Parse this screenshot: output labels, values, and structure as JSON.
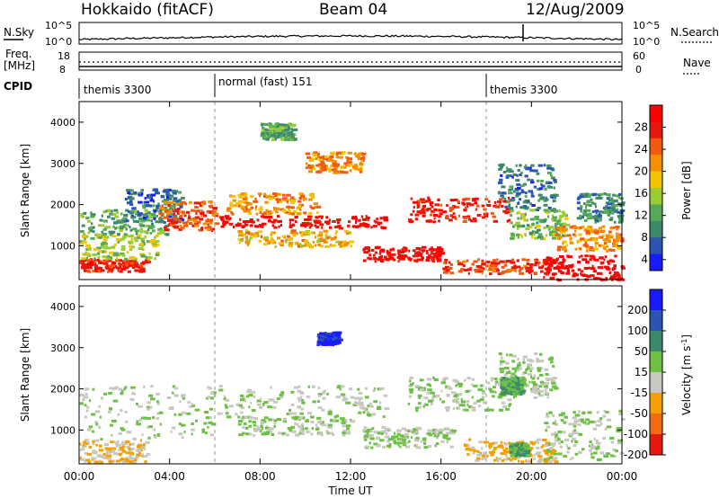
{
  "header": {
    "station": "Hokkaido (fitACF)",
    "beam": "Beam 04",
    "date": "12/Aug/2009"
  },
  "noise_panel": {
    "left_label": "N.Sky",
    "right_label": "N.Search",
    "left_ticks": [
      "10^5",
      "10^0"
    ],
    "right_ticks": [
      "10^5",
      "10^0"
    ]
  },
  "freq_panel": {
    "left_label_line1": "Freq.",
    "left_label_line2": "[MHz]",
    "right_label": "Nave",
    "left_ticks": [
      "18",
      "8"
    ],
    "right_ticks": [
      "60",
      "0"
    ]
  },
  "cpid_panel": {
    "label": "CPID",
    "modes": [
      {
        "text": "themis 3300",
        "start_hour": 0
      },
      {
        "text": "normal (fast) 151",
        "start_hour": 6
      },
      {
        "text": "themis 3300",
        "start_hour": 18
      }
    ]
  },
  "time_axis": {
    "label": "Time UT",
    "ticks": [
      "00:00",
      "04:00",
      "08:00",
      "12:00",
      "16:00",
      "20:00",
      "00:00"
    ]
  },
  "colors": {
    "power_scale": [
      "#1a1aff",
      "#2a55b0",
      "#3d8a6a",
      "#58a85a",
      "#9acd32",
      "#f5c400",
      "#f39000",
      "#f35a10",
      "#e8180c",
      "#ff0000"
    ],
    "velocity_scale": [
      "#1a1aff",
      "#2a55b0",
      "#3d8a6a",
      "#6cc043",
      "#c8c8c0",
      "#f5a000",
      "#f36a10",
      "#e8180c"
    ]
  },
  "chart_data": [
    {
      "type": "heatmap",
      "name": "power",
      "ylabel": "Slant Range [km]",
      "xlabel": "Time UT",
      "xlim": [
        0,
        24
      ],
      "ylim": [
        180,
        4500
      ],
      "yticks": [
        "1000",
        "2000",
        "3000",
        "4000"
      ],
      "colorbar": {
        "label": "Power [dB]",
        "ticks": [
          "28",
          "24",
          "20",
          "16",
          "12",
          "8",
          "4"
        ],
        "range": [
          0,
          30
        ]
      },
      "blobs": [
        {
          "t0": 0.0,
          "t1": 3.0,
          "r0": 400,
          "r1": 700,
          "v": 26
        },
        {
          "t0": 0.0,
          "t1": 3.5,
          "r0": 700,
          "r1": 1300,
          "v": 14
        },
        {
          "t0": 0.0,
          "t1": 4.0,
          "r0": 1300,
          "r1": 1900,
          "v": 10
        },
        {
          "t0": 2.0,
          "t1": 4.5,
          "r0": 1600,
          "r1": 2400,
          "v": 6
        },
        {
          "t0": 3.5,
          "t1": 6.0,
          "r0": 1400,
          "r1": 2100,
          "v": 23
        },
        {
          "t0": 6.0,
          "t1": 13.5,
          "r0": 1450,
          "r1": 1750,
          "v": 28
        },
        {
          "t0": 6.5,
          "t1": 10.5,
          "r0": 1800,
          "r1": 2300,
          "v": 20
        },
        {
          "t0": 7.0,
          "t1": 12.0,
          "r0": 1000,
          "r1": 1400,
          "v": 18
        },
        {
          "t0": 8.0,
          "t1": 9.5,
          "r0": 3600,
          "r1": 4000,
          "v": 10
        },
        {
          "t0": 10.0,
          "t1": 12.5,
          "r0": 2800,
          "r1": 3300,
          "v": 20
        },
        {
          "t0": 12.5,
          "t1": 16.0,
          "r0": 650,
          "r1": 1000,
          "v": 28
        },
        {
          "t0": 14.5,
          "t1": 19.0,
          "r0": 1600,
          "r1": 2200,
          "v": 26
        },
        {
          "t0": 16.0,
          "t1": 21.0,
          "r0": 350,
          "r1": 700,
          "v": 24
        },
        {
          "t0": 18.5,
          "t1": 21.0,
          "r0": 1900,
          "r1": 3000,
          "v": 6
        },
        {
          "t0": 19.0,
          "t1": 21.5,
          "r0": 1200,
          "r1": 1900,
          "v": 12
        },
        {
          "t0": 20.5,
          "t1": 24.0,
          "r0": 200,
          "r1": 800,
          "v": 29
        },
        {
          "t0": 21.0,
          "t1": 24.0,
          "r0": 900,
          "r1": 1500,
          "v": 20
        },
        {
          "t0": 22.0,
          "t1": 24.0,
          "r0": 1600,
          "r1": 2300,
          "v": 8
        }
      ]
    },
    {
      "type": "heatmap",
      "name": "velocity",
      "ylabel": "Slant Range [km]",
      "xlabel": "Time UT",
      "xlim": [
        0,
        24
      ],
      "ylim": [
        180,
        4500
      ],
      "yticks": [
        "1000",
        "2000",
        "3000",
        "4000"
      ],
      "colorbar": {
        "label": "Velocity [m s-1]",
        "ticks": [
          "200",
          "100",
          "50",
          "15",
          "-15",
          "-50",
          "-100",
          "-200"
        ],
        "range": [
          -250,
          250
        ]
      },
      "blobs": [
        {
          "t0": 0.0,
          "t1": 6.0,
          "r0": 800,
          "r1": 2100,
          "v": 0
        },
        {
          "t0": 0.0,
          "t1": 3.0,
          "r0": 250,
          "r1": 800,
          "v": -60
        },
        {
          "t0": 6.0,
          "t1": 13.5,
          "r0": 1350,
          "r1": 2100,
          "v": 0
        },
        {
          "t0": 7.0,
          "t1": 12.0,
          "r0": 900,
          "r1": 1350,
          "v": 0
        },
        {
          "t0": 12.5,
          "t1": 16.5,
          "r0": 600,
          "r1": 1100,
          "v": 0
        },
        {
          "t0": 14.5,
          "t1": 19.0,
          "r0": 1500,
          "r1": 2300,
          "v": 0
        },
        {
          "t0": 17.0,
          "t1": 21.0,
          "r0": 250,
          "r1": 800,
          "v": -70
        },
        {
          "t0": 18.5,
          "t1": 21.0,
          "r0": 1800,
          "r1": 2900,
          "v": 0
        },
        {
          "t0": 20.5,
          "t1": 24.0,
          "r0": 300,
          "r1": 1500,
          "v": 0
        },
        {
          "t0": 18.6,
          "t1": 19.6,
          "r0": 1900,
          "r1": 2300,
          "v": 60
        },
        {
          "t0": 19.0,
          "t1": 19.8,
          "r0": 400,
          "r1": 700,
          "v": 60
        },
        {
          "t0": 10.5,
          "t1": 11.5,
          "r0": 3100,
          "r1": 3400,
          "v": 200
        }
      ]
    }
  ]
}
